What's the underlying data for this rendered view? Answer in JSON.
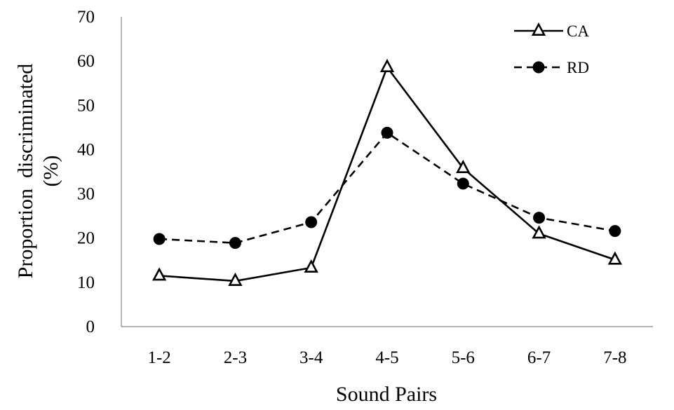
{
  "chart_data": {
    "type": "line",
    "xlabel": "Sound Pairs",
    "ylabel_lines": [
      "Proportion  discriminated",
      "(%)"
    ],
    "categories": [
      "1-2",
      "2-3",
      "3-4",
      "4-5",
      "5-6",
      "6-7",
      "7-8"
    ],
    "ylim": [
      0,
      70
    ],
    "yticks": [
      0,
      10,
      20,
      30,
      40,
      50,
      60,
      70
    ],
    "grid": false,
    "legend_position": "top-right",
    "series": [
      {
        "name": "CA",
        "values": [
          11.5,
          10.3,
          13.3,
          58.6,
          35.8,
          21.0,
          15.1
        ],
        "line_style": "solid",
        "marker": "triangle-open",
        "color": "#000000"
      },
      {
        "name": "RD",
        "values": [
          19.8,
          18.9,
          23.6,
          43.8,
          32.3,
          24.6,
          21.6
        ],
        "line_style": "dashed",
        "marker": "circle-filled",
        "color": "#000000"
      }
    ]
  }
}
